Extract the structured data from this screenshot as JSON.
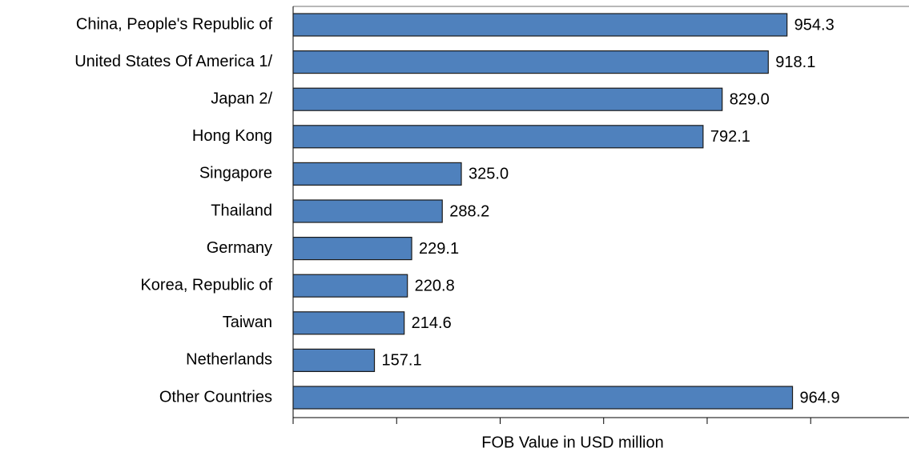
{
  "chart_data": {
    "type": "bar",
    "orientation": "horizontal",
    "x_label": "FOB Value in USD million",
    "categories": [
      "China, People's Republic of",
      "United States Of America 1/",
      "Japan 2/",
      "Hong Kong",
      "Singapore",
      "Thailand",
      "Germany",
      "Korea, Republic of",
      "Taiwan",
      "Netherlands",
      "Other Countries"
    ],
    "values": [
      954.3,
      918.1,
      829.0,
      792.1,
      325.0,
      288.2,
      229.1,
      220.8,
      214.6,
      157.1,
      964.9
    ],
    "value_labels": [
      "954.3",
      "918.1",
      "829.0",
      "792.1",
      "325.0",
      "288.2",
      "229.1",
      "220.8",
      "214.6",
      "157.1",
      "964.9"
    ],
    "color": "#4f81bd",
    "xlim": [
      0,
      1200
    ],
    "xticks": [
      0,
      200,
      400,
      600,
      800,
      1000,
      1200
    ]
  }
}
